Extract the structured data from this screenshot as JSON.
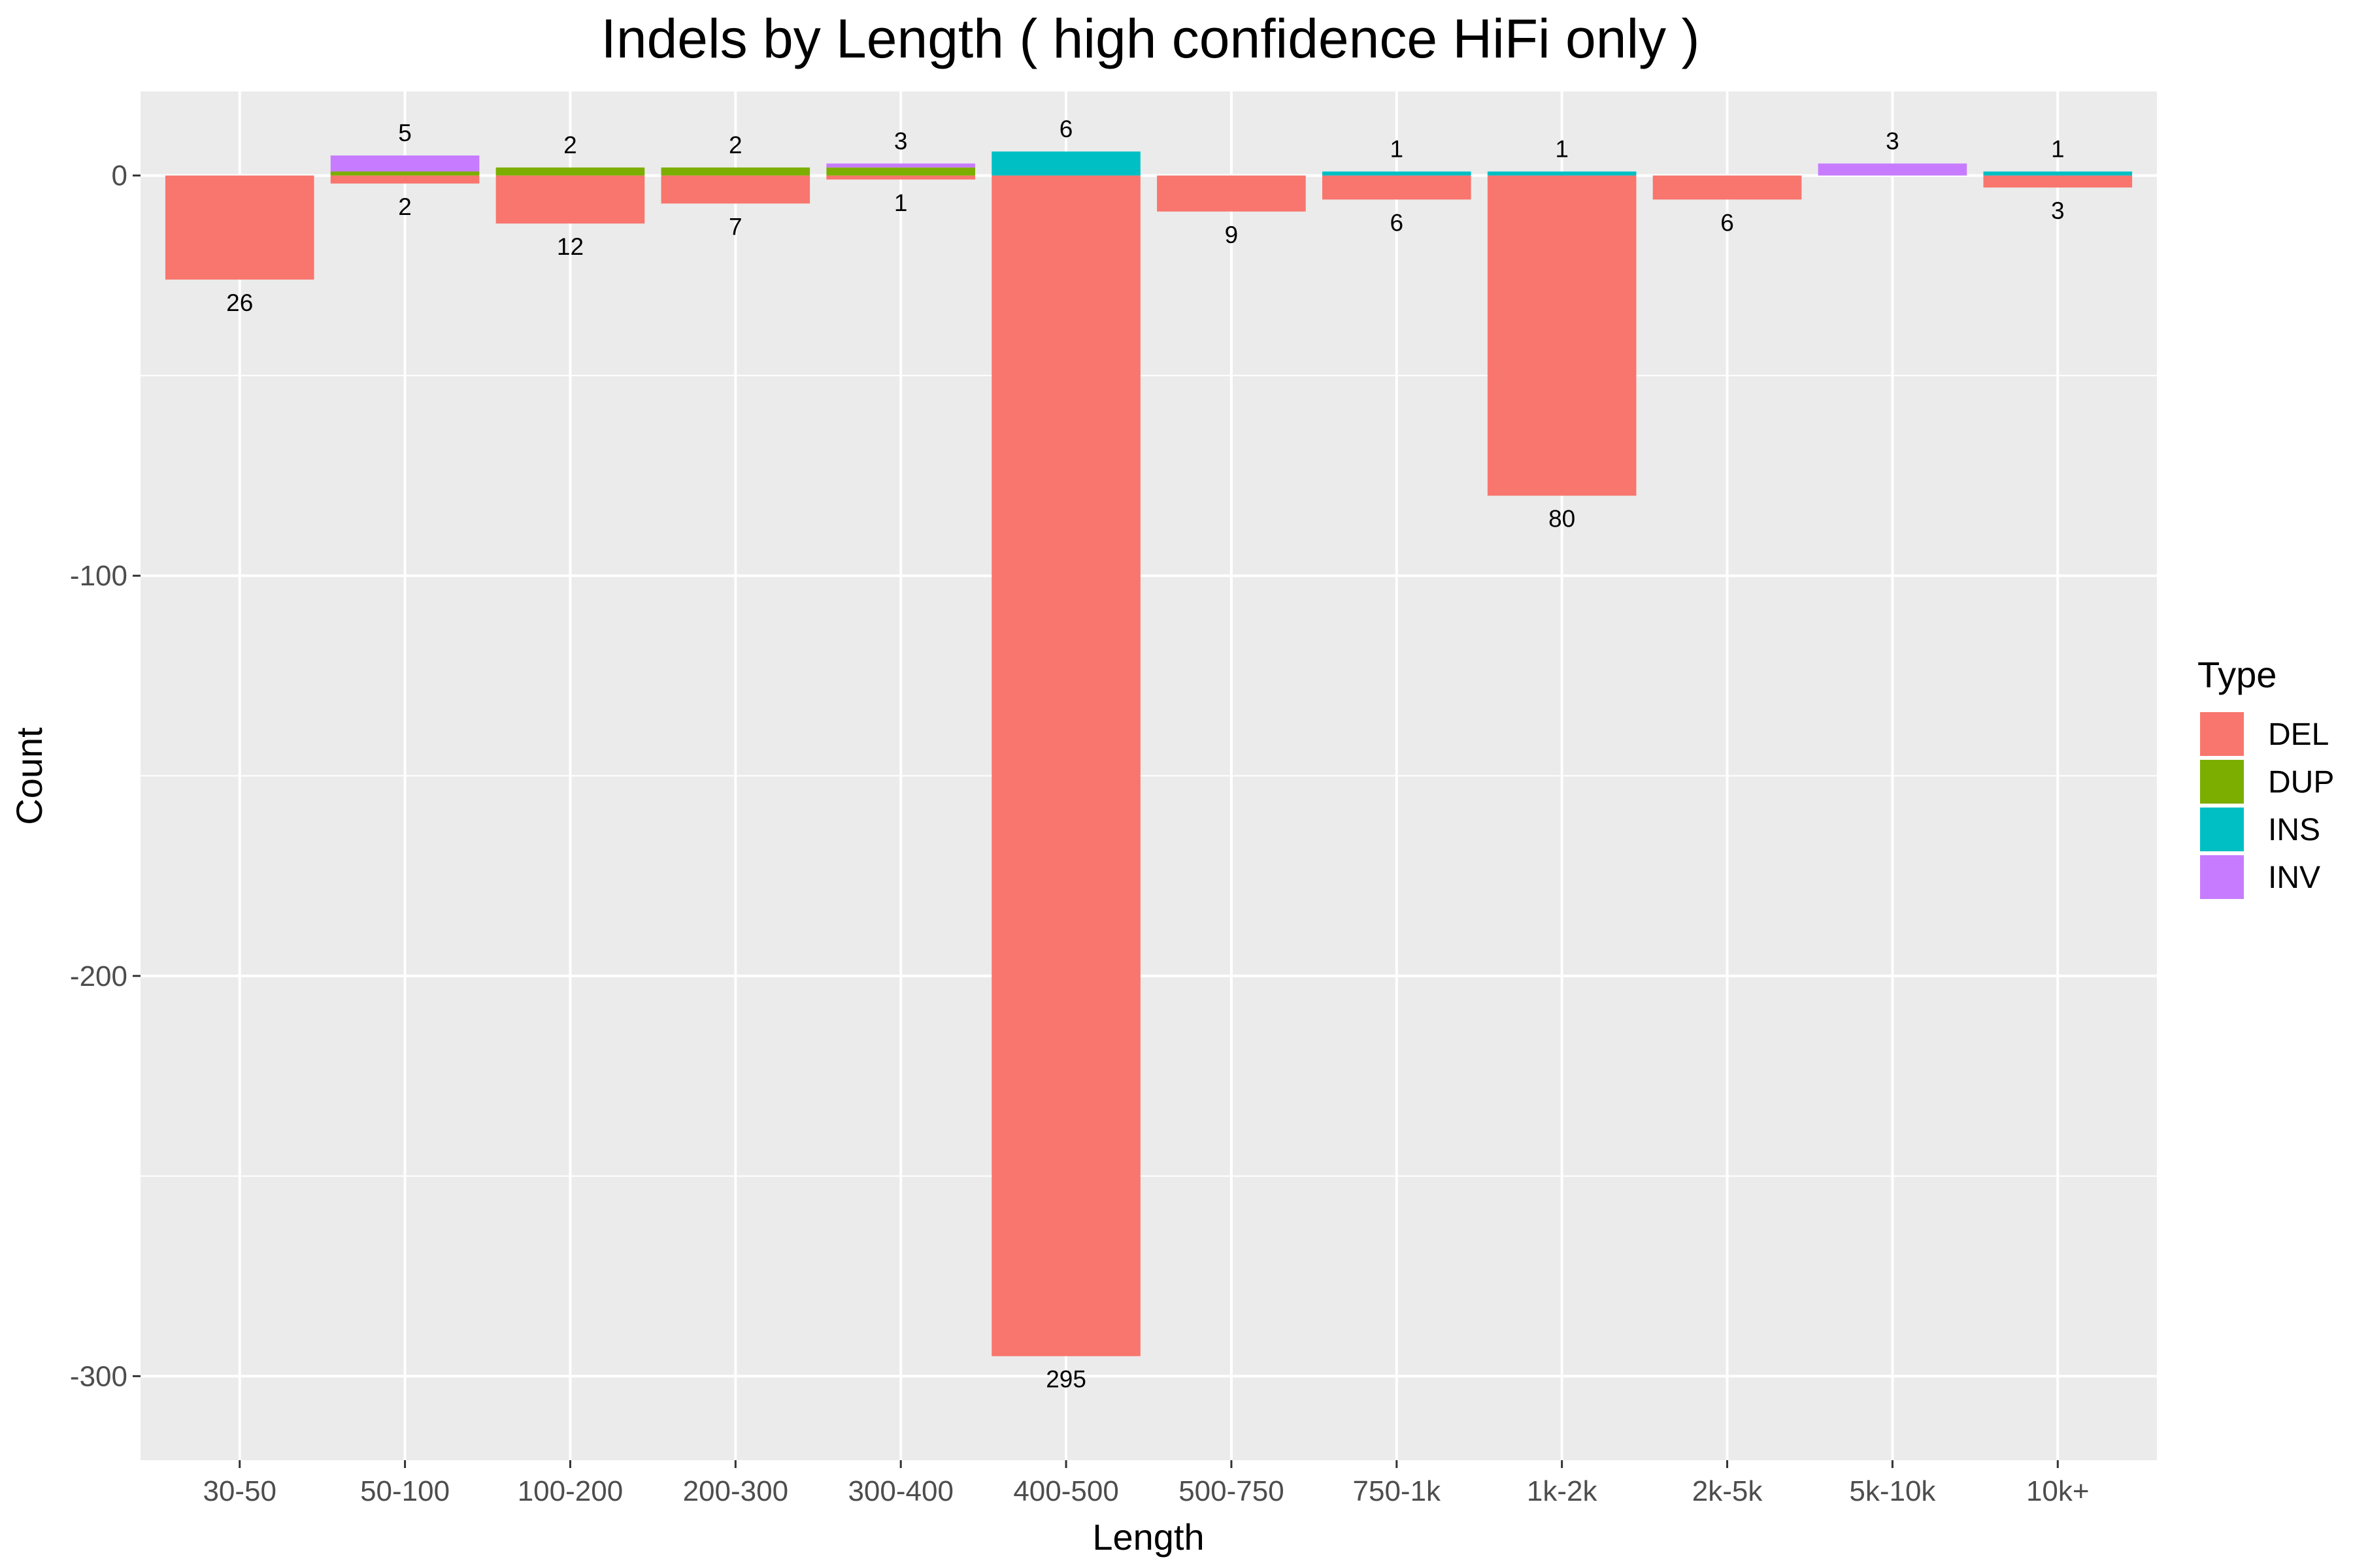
{
  "chart_data": {
    "type": "bar",
    "title": "Indels by Length ( high confidence HiFi only )",
    "xlabel": "Length",
    "ylabel": "Count",
    "ylim": [
      -321,
      21
    ],
    "yticks": [
      0,
      -100,
      -200,
      -300
    ],
    "grid": true,
    "legend": {
      "title": "Type",
      "placement": "right"
    },
    "categories": [
      "30-50",
      "50-100",
      "100-200",
      "200-300",
      "300-400",
      "400-500",
      "500-750",
      "750-1k",
      "1k-2k",
      "2k-5k",
      "5k-10k",
      "10k+"
    ],
    "series": [
      {
        "name": "DEL",
        "color": "#F8766D",
        "values": [
          -26,
          -2,
          -12,
          -7,
          -1,
          -295,
          -9,
          -6,
          -80,
          -6,
          0,
          -3
        ]
      },
      {
        "name": "DUP",
        "color": "#7CAE00",
        "values": [
          0,
          1,
          2,
          2,
          2,
          0,
          0,
          0,
          0,
          0,
          0,
          0
        ]
      },
      {
        "name": "INS",
        "color": "#00BFC4",
        "values": [
          0,
          0,
          0,
          0,
          0,
          6,
          0,
          1,
          1,
          0,
          0,
          1
        ]
      },
      {
        "name": "INV",
        "color": "#C77CFF",
        "values": [
          0,
          4,
          0,
          0,
          1,
          0,
          0,
          0,
          0,
          0,
          3,
          0
        ]
      }
    ],
    "labels_above": [
      "",
      "5",
      "2",
      "2",
      "3",
      "6",
      "",
      "1",
      "1",
      "",
      "3",
      "1"
    ],
    "labels_below": [
      "26",
      "2",
      "12",
      "7",
      "1",
      "295",
      "9",
      "6",
      "80",
      "6",
      "",
      "3"
    ]
  }
}
